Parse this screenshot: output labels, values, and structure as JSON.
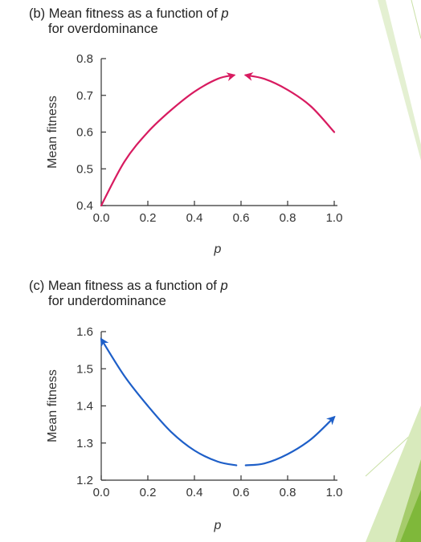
{
  "panels": [
    {
      "title_prefix": "(b) Mean fitness as a function of ",
      "title_italic": "p",
      "title_line2": "for overdominance"
    },
    {
      "title_prefix": "(c) Mean fitness as a function of ",
      "title_italic": "p",
      "title_line2": "for underdominance"
    }
  ],
  "chart_data": [
    {
      "type": "line",
      "title": "(b) Mean fitness as a function of p for overdominance",
      "xlabel": "p",
      "ylabel": "Mean fitness",
      "xlim": [
        0,
        1
      ],
      "ylim": [
        0.4,
        0.8
      ],
      "xticks": [
        "0.0",
        "0.2",
        "0.4",
        "0.6",
        "0.8",
        "1.0"
      ],
      "yticks": [
        "0.4",
        "0.5",
        "0.6",
        "0.7",
        "0.8"
      ],
      "grid": false,
      "series": [
        {
          "color": "#d81b60",
          "x": [
            0,
            0.1,
            0.2,
            0.3,
            0.4,
            0.5,
            0.57
          ],
          "y": [
            0.4,
            0.52,
            0.6,
            0.66,
            0.71,
            0.745,
            0.755
          ],
          "arrow_at_end": true
        },
        {
          "color": "#d81b60",
          "x": [
            1.0,
            0.9,
            0.8,
            0.7,
            0.62
          ],
          "y": [
            0.6,
            0.67,
            0.715,
            0.745,
            0.755
          ],
          "arrow_at_end": true
        }
      ]
    },
    {
      "type": "line",
      "title": "(c) Mean fitness as a function of p for underdominance",
      "xlabel": "p",
      "ylabel": "Mean fitness",
      "xlim": [
        0,
        1
      ],
      "ylim": [
        1.2,
        1.6
      ],
      "xticks": [
        "0.0",
        "0.2",
        "0.4",
        "0.6",
        "0.8",
        "1.0"
      ],
      "yticks": [
        "1.2",
        "1.3",
        "1.4",
        "1.5",
        "1.6"
      ],
      "grid": false,
      "series": [
        {
          "color": "#1e5fc8",
          "x": [
            0.58,
            0.5,
            0.4,
            0.3,
            0.2,
            0.1,
            0.0
          ],
          "y": [
            1.24,
            1.25,
            1.28,
            1.33,
            1.4,
            1.48,
            1.58
          ],
          "arrow_at_end": true
        },
        {
          "color": "#1e5fc8",
          "x": [
            0.62,
            0.7,
            0.8,
            0.9,
            1.0
          ],
          "y": [
            1.24,
            1.245,
            1.27,
            1.31,
            1.37
          ],
          "arrow_at_end": true
        }
      ]
    }
  ],
  "colors": {
    "axis": "#333333",
    "text": "#222222",
    "decor_light": "#d3e7b6",
    "decor_mid": "#b7d68a",
    "decor_dark": "#7fb83a"
  }
}
